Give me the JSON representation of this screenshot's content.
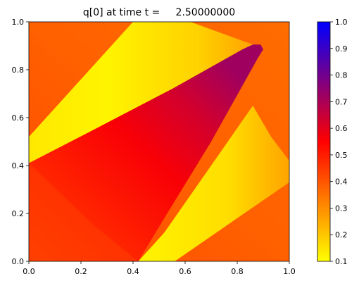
{
  "chart_data": {
    "type": "heatmap",
    "title": "q[0] at time t =     2.50000000",
    "xlabel": "",
    "ylabel": "",
    "xlim": [
      0.0,
      1.0
    ],
    "ylim": [
      0.0,
      1.0
    ],
    "x_ticks": [
      "0.0",
      "0.2",
      "0.4",
      "0.6",
      "0.8",
      "1.0"
    ],
    "y_ticks": [
      "0.0",
      "0.2",
      "0.4",
      "0.6",
      "0.8",
      "1.0"
    ],
    "grid": false,
    "colorbar": {
      "range": [
        0.1,
        1.0
      ],
      "ticks": [
        "0.1",
        "0.2",
        "0.3",
        "0.4",
        "0.5",
        "0.6",
        "0.7",
        "0.8",
        "0.9",
        "1.0"
      ],
      "colors": [
        "#ffff00",
        "#ff0000",
        "#0000ff"
      ],
      "color_positions": [
        0.1,
        0.55,
        1.0
      ]
    },
    "regions": [
      {
        "name": "triangle",
        "polygon": [
          [
            0.0,
            0.41
          ],
          [
            0.9,
            0.885
          ],
          [
            0.42,
            0.0
          ],
          [
            0.0,
            0.0
          ]
        ],
        "value_gradient": [
          {
            "at": [
              0.0,
              0.0
            ],
            "value": 0.43
          },
          {
            "at": [
              0.25,
              0.25
            ],
            "value": 0.49
          },
          {
            "at": [
              0.5,
              0.5
            ],
            "value": 0.56
          },
          {
            "at": [
              0.7,
              0.7
            ],
            "value": 0.63
          },
          {
            "at": [
              0.88,
              0.88
            ],
            "value": 0.72
          }
        ]
      },
      {
        "name": "upper-band",
        "polygon": [
          [
            0.0,
            0.41
          ],
          [
            0.0,
            0.5
          ],
          [
            0.4,
            1.0
          ],
          [
            0.6,
            1.0
          ],
          [
            0.0,
            0.5
          ]
        ],
        "value": 0.12
      },
      {
        "name": "lower-band",
        "polygon": [
          [
            0.42,
            0.0
          ],
          [
            1.0,
            0.0
          ],
          [
            1.0,
            0.41
          ]
        ],
        "value": 0.12
      },
      {
        "name": "background",
        "value": 0.38
      }
    ]
  }
}
